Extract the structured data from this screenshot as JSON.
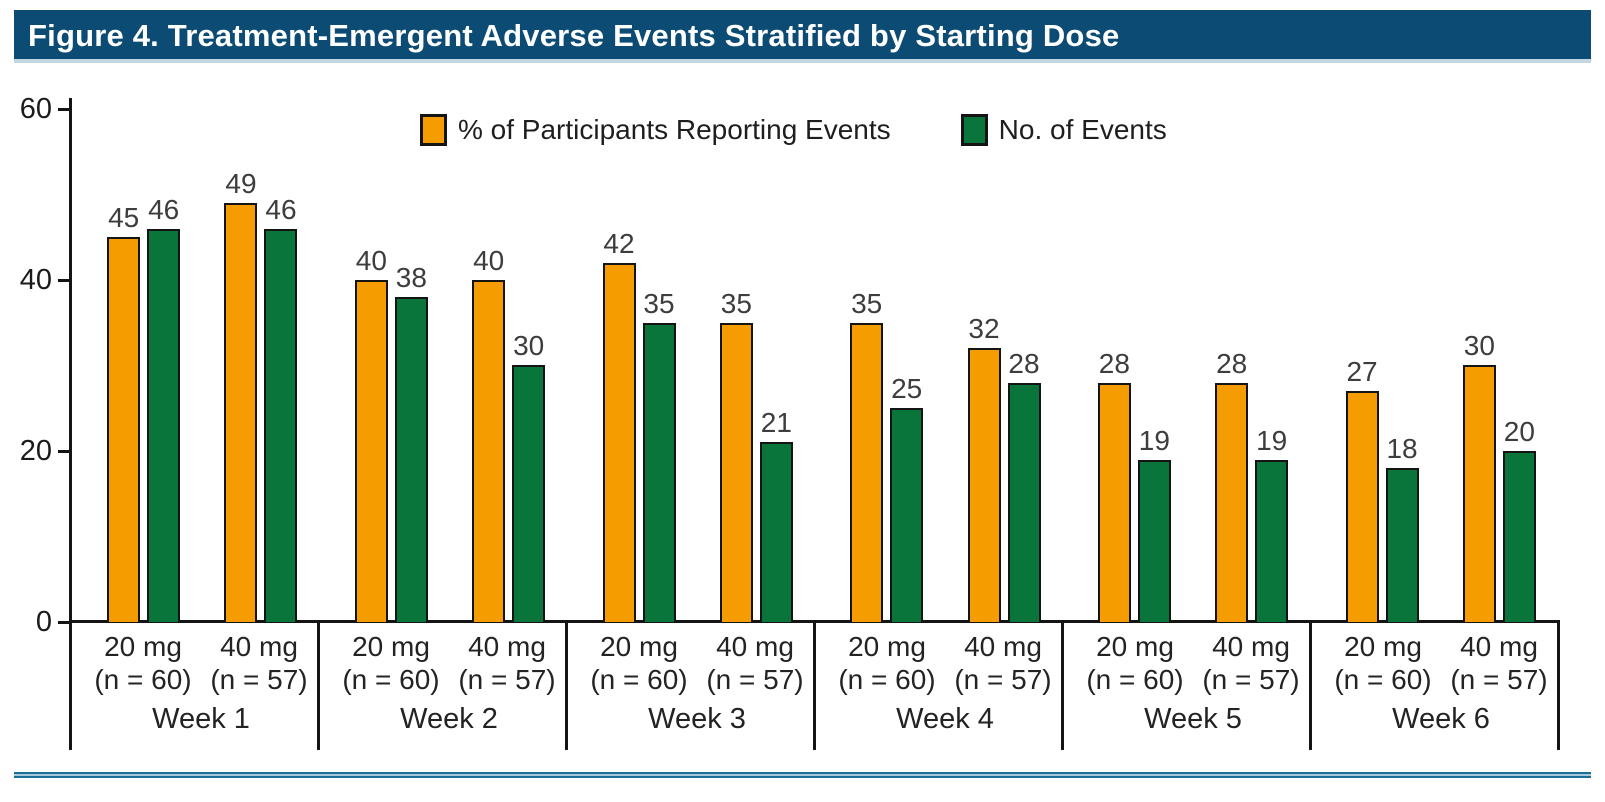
{
  "title": "Figure 4. Treatment-Emergent Adverse Events Stratified by Starting Dose",
  "legend": {
    "items": [
      {
        "label": "% of Participants Reporting Events",
        "color": "#F59C00"
      },
      {
        "label": "No. of Events",
        "color": "#0A753A"
      }
    ]
  },
  "y_axis": {
    "ticks": [
      60,
      40,
      20,
      0
    ],
    "max": 60
  },
  "groups": [
    {
      "week": "Week 1",
      "doses": [
        {
          "dose": "20 mg",
          "n": "(n = 60)",
          "pct": 45,
          "events": 46
        },
        {
          "dose": "40 mg",
          "n": "(n = 57)",
          "pct": 49,
          "events": 46
        }
      ]
    },
    {
      "week": "Week 2",
      "doses": [
        {
          "dose": "20 mg",
          "n": "(n = 60)",
          "pct": 40,
          "events": 38
        },
        {
          "dose": "40 mg",
          "n": "(n = 57)",
          "pct": 40,
          "events": 30
        }
      ]
    },
    {
      "week": "Week 3",
      "doses": [
        {
          "dose": "20 mg",
          "n": "(n = 60)",
          "pct": 42,
          "events": 35
        },
        {
          "dose": "40 mg",
          "n": "(n = 57)",
          "pct": 35,
          "events": 21
        }
      ]
    },
    {
      "week": "Week 4",
      "doses": [
        {
          "dose": "20 mg",
          "n": "(n = 60)",
          "pct": 35,
          "events": 25
        },
        {
          "dose": "40 mg",
          "n": "(n = 57)",
          "pct": 32,
          "events": 28
        }
      ]
    },
    {
      "week": "Week 5",
      "doses": [
        {
          "dose": "20 mg",
          "n": "(n = 60)",
          "pct": 28,
          "events": 19
        },
        {
          "dose": "40 mg",
          "n": "(n = 57)",
          "pct": 28,
          "events": 19
        }
      ]
    },
    {
      "week": "Week 6",
      "doses": [
        {
          "dose": "20 mg",
          "n": "(n = 60)",
          "pct": 27,
          "events": 18
        },
        {
          "dose": "40 mg",
          "n": "(n = 57)",
          "pct": 30,
          "events": 20
        }
      ]
    }
  ],
  "chart_data": {
    "type": "bar",
    "title": "Figure 4. Treatment-Emergent Adverse Events Stratified by Starting Dose",
    "categories": [
      "Week 1",
      "Week 2",
      "Week 3",
      "Week 4",
      "Week 5",
      "Week 6"
    ],
    "subgroups": [
      {
        "label": "20 mg",
        "n_label": "(n = 60)"
      },
      {
        "label": "40 mg",
        "n_label": "(n = 57)"
      }
    ],
    "series": [
      {
        "name": "% of Participants Reporting Events",
        "color": "#F59C00",
        "subgroup_values": {
          "20 mg": [
            45,
            40,
            42,
            35,
            28,
            27
          ],
          "40 mg": [
            49,
            40,
            35,
            32,
            28,
            30
          ]
        }
      },
      {
        "name": "No. of Events",
        "color": "#0A753A",
        "subgroup_values": {
          "20 mg": [
            46,
            38,
            35,
            25,
            19,
            18
          ],
          "40 mg": [
            46,
            30,
            21,
            28,
            19,
            20
          ]
        }
      }
    ],
    "ylim": [
      0,
      60
    ],
    "y_ticks": [
      0,
      20,
      40,
      60
    ],
    "grid": false,
    "legend_position": "top-center",
    "bar_value_labels": true
  },
  "colors": {
    "title_bar_bg": "#0c4c74",
    "title_bar_edge": "#c2d7e1",
    "bar_orange": "#F59C00",
    "bar_green": "#0A753A",
    "axis_ink": "#141414",
    "bottom_rule_dark": "#1b6e99",
    "bottom_rule_light": "#a6c8d9"
  }
}
